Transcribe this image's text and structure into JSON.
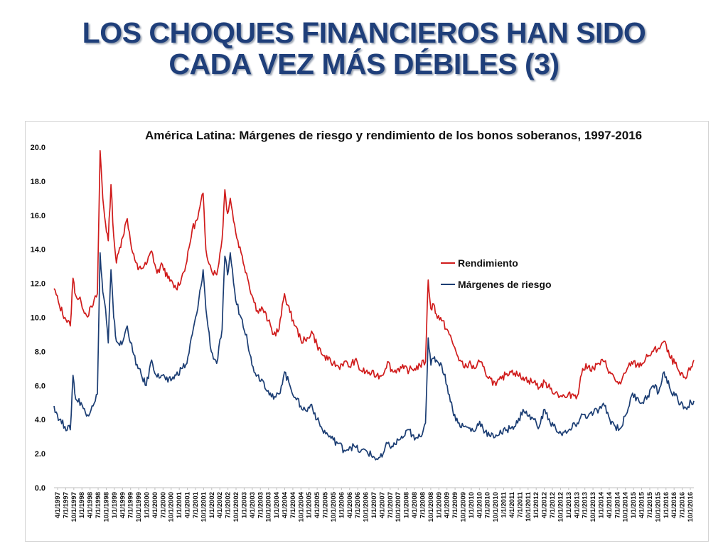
{
  "slide": {
    "title_line1": "LOS CHOQUES FINANCIEROS HAN SIDO",
    "title_line2": "CADA VEZ MÁS DÉBILES (3)"
  },
  "chart_data": {
    "type": "line",
    "title": "América Latina: Márgenes de riesgo y rendimiento de los bonos soberanos, 1997-2016",
    "xlabel": "",
    "ylabel": "",
    "ylim": [
      0,
      20
    ],
    "y_ticks": [
      "0.0",
      "2.0",
      "4.0",
      "6.0",
      "8.0",
      "10.0",
      "12.0",
      "14.0",
      "16.0",
      "18.0",
      "20.0"
    ],
    "x_ticks": [
      "4/1/1997",
      "7/1/1997",
      "10/1/1997",
      "1/1/1998",
      "4/1/1998",
      "7/1/1998",
      "10/1/1998",
      "1/1/1999",
      "4/1/1999",
      "7/1/1999",
      "10/1/1999",
      "1/1/2000",
      "4/1/2000",
      "7/1/2000",
      "10/1/2000",
      "1/1/2001",
      "4/1/2001",
      "7/1/2001",
      "10/1/2001",
      "1/1/2002",
      "4/1/2002",
      "7/1/2002",
      "10/1/2002",
      "1/1/2003",
      "4/1/2003",
      "7/1/2003",
      "10/1/2003",
      "1/1/2004",
      "4/1/2004",
      "7/1/2004",
      "10/1/2004",
      "1/1/2005",
      "4/1/2005",
      "7/1/2005",
      "10/1/2005",
      "1/1/2006",
      "4/1/2006",
      "7/1/2006",
      "10/1/2006",
      "1/1/2007",
      "4/1/2007",
      "7/1/2007",
      "10/1/2007",
      "1/1/2008",
      "4/1/2008",
      "7/1/2008",
      "10/1/2008",
      "1/1/2009",
      "4/1/2009",
      "7/1/2009",
      "10/1/2009",
      "1/1/2010",
      "4/1/2010",
      "7/1/2010",
      "10/1/2010",
      "1/1/2011",
      "4/1/2011",
      "7/1/2011",
      "10/1/2011",
      "1/1/2012",
      "4/1/2012",
      "7/1/2012",
      "10/1/2012",
      "1/1/2013",
      "4/1/2013",
      "7/1/2013",
      "10/1/2013",
      "1/1/2014",
      "4/1/2014",
      "7/1/2014",
      "10/1/2014",
      "1/1/2015",
      "4/1/2015",
      "7/1/2015",
      "10/1/2015",
      "1/1/2016",
      "4/1/2016",
      "7/1/2016",
      "10/1/2016"
    ],
    "grid": false,
    "legend_position": "right-middle",
    "series": [
      {
        "name": "Rendimiento",
        "color": "#d01c1c",
        "points": [
          [
            "1997-04",
            11.7
          ],
          [
            "1997-06",
            10.7
          ],
          [
            "1997-08",
            10.0
          ],
          [
            "1997-10",
            9.5
          ],
          [
            "1997-11",
            12.3
          ],
          [
            "1997-12",
            11.3
          ],
          [
            "1998-02",
            10.9
          ],
          [
            "1998-04",
            10.1
          ],
          [
            "1998-06",
            10.6
          ],
          [
            "1998-08",
            11.4
          ],
          [
            "1998-09",
            19.8
          ],
          [
            "1998-10",
            17.0
          ],
          [
            "1998-11",
            15.5
          ],
          [
            "1998-12",
            14.5
          ],
          [
            "1999-01",
            17.8
          ],
          [
            "1999-02",
            14.8
          ],
          [
            "1999-03",
            13.2
          ],
          [
            "1999-05",
            14.6
          ],
          [
            "1999-07",
            15.8
          ],
          [
            "1999-09",
            13.8
          ],
          [
            "1999-11",
            12.8
          ],
          [
            "2000-02",
            13.1
          ],
          [
            "2000-04",
            13.9
          ],
          [
            "2000-06",
            12.6
          ],
          [
            "2000-08",
            13.1
          ],
          [
            "2000-10",
            12.3
          ],
          [
            "2001-01",
            11.7
          ],
          [
            "2001-03",
            12.3
          ],
          [
            "2001-05",
            13.3
          ],
          [
            "2001-07",
            15.2
          ],
          [
            "2001-09",
            15.8
          ],
          [
            "2001-11",
            17.3
          ],
          [
            "2001-12",
            14.0
          ],
          [
            "2002-02",
            12.8
          ],
          [
            "2002-04",
            12.5
          ],
          [
            "2002-06",
            14.6
          ],
          [
            "2002-07",
            17.5
          ],
          [
            "2002-08",
            16.1
          ],
          [
            "2002-09",
            17.0
          ],
          [
            "2002-11",
            15.0
          ],
          [
            "2003-01",
            13.8
          ],
          [
            "2003-03",
            12.6
          ],
          [
            "2003-05",
            11.3
          ],
          [
            "2003-07",
            10.4
          ],
          [
            "2003-09",
            10.5
          ],
          [
            "2003-11",
            9.8
          ],
          [
            "2004-01",
            9.0
          ],
          [
            "2004-03",
            9.3
          ],
          [
            "2004-05",
            11.4
          ],
          [
            "2004-07",
            10.3
          ],
          [
            "2004-09",
            9.5
          ],
          [
            "2004-11",
            8.7
          ],
          [
            "2005-01",
            8.6
          ],
          [
            "2005-03",
            9.2
          ],
          [
            "2005-05",
            8.4
          ],
          [
            "2005-07",
            7.8
          ],
          [
            "2005-09",
            7.5
          ],
          [
            "2005-11",
            7.3
          ],
          [
            "2006-01",
            7.1
          ],
          [
            "2006-03",
            7.4
          ],
          [
            "2006-05",
            7.1
          ],
          [
            "2006-07",
            7.5
          ],
          [
            "2006-09",
            6.9
          ],
          [
            "2006-11",
            6.8
          ],
          [
            "2007-01",
            6.7
          ],
          [
            "2007-03",
            6.6
          ],
          [
            "2007-05",
            6.6
          ],
          [
            "2007-07",
            7.4
          ],
          [
            "2007-09",
            6.8
          ],
          [
            "2007-11",
            7.0
          ],
          [
            "2008-01",
            7.0
          ],
          [
            "2008-03",
            6.9
          ],
          [
            "2008-05",
            7.0
          ],
          [
            "2008-07",
            7.2
          ],
          [
            "2008-09",
            7.4
          ],
          [
            "2008-10",
            12.2
          ],
          [
            "2008-11",
            10.5
          ],
          [
            "2008-12",
            10.8
          ],
          [
            "2009-01",
            10.2
          ],
          [
            "2009-03",
            9.8
          ],
          [
            "2009-05",
            9.3
          ],
          [
            "2009-07",
            8.5
          ],
          [
            "2009-09",
            7.7
          ],
          [
            "2009-11",
            7.1
          ],
          [
            "2010-01",
            7.3
          ],
          [
            "2010-03",
            7.0
          ],
          [
            "2010-05",
            7.4
          ],
          [
            "2010-07",
            6.8
          ],
          [
            "2010-09",
            6.4
          ],
          [
            "2010-11",
            6.0
          ],
          [
            "2011-01",
            6.4
          ],
          [
            "2011-03",
            6.7
          ],
          [
            "2011-05",
            6.9
          ],
          [
            "2011-07",
            6.6
          ],
          [
            "2011-09",
            6.5
          ],
          [
            "2011-11",
            6.3
          ],
          [
            "2012-01",
            6.2
          ],
          [
            "2012-03",
            5.9
          ],
          [
            "2012-05",
            6.2
          ],
          [
            "2012-07",
            5.8
          ],
          [
            "2012-09",
            5.6
          ],
          [
            "2012-11",
            5.4
          ],
          [
            "2013-01",
            5.3
          ],
          [
            "2013-03",
            5.5
          ],
          [
            "2013-05",
            5.4
          ],
          [
            "2013-07",
            7.0
          ],
          [
            "2013-09",
            7.1
          ],
          [
            "2013-11",
            7.0
          ],
          [
            "2014-01",
            7.3
          ],
          [
            "2014-03",
            7.4
          ],
          [
            "2014-05",
            6.8
          ],
          [
            "2014-07",
            6.3
          ],
          [
            "2014-09",
            6.1
          ],
          [
            "2014-11",
            6.8
          ],
          [
            "2015-01",
            7.4
          ],
          [
            "2015-03",
            7.2
          ],
          [
            "2015-05",
            7.3
          ],
          [
            "2015-07",
            7.7
          ],
          [
            "2015-09",
            8.0
          ],
          [
            "2015-11",
            8.2
          ],
          [
            "2016-01",
            8.6
          ],
          [
            "2016-03",
            7.7
          ],
          [
            "2016-05",
            7.3
          ],
          [
            "2016-07",
            6.6
          ],
          [
            "2016-09",
            6.4
          ],
          [
            "2016-11",
            7.1
          ],
          [
            "2016-12",
            7.5
          ]
        ]
      },
      {
        "name": "Márgenes de riesgo",
        "color": "#1b3d73",
        "points": [
          [
            "1997-04",
            4.8
          ],
          [
            "1997-06",
            4.0
          ],
          [
            "1997-08",
            3.6
          ],
          [
            "1997-10",
            3.4
          ],
          [
            "1997-11",
            6.6
          ],
          [
            "1997-12",
            5.2
          ],
          [
            "1998-02",
            5.0
          ],
          [
            "1998-04",
            4.2
          ],
          [
            "1998-06",
            4.8
          ],
          [
            "1998-08",
            5.5
          ],
          [
            "1998-09",
            13.8
          ],
          [
            "1998-10",
            11.5
          ],
          [
            "1998-11",
            10.5
          ],
          [
            "1998-12",
            8.5
          ],
          [
            "1999-01",
            12.8
          ],
          [
            "1999-02",
            10.0
          ],
          [
            "1999-03",
            8.6
          ],
          [
            "1999-05",
            8.4
          ],
          [
            "1999-07",
            9.5
          ],
          [
            "1999-09",
            8.0
          ],
          [
            "1999-11",
            7.0
          ],
          [
            "2000-02",
            6.0
          ],
          [
            "2000-04",
            7.5
          ],
          [
            "2000-06",
            6.5
          ],
          [
            "2000-08",
            6.6
          ],
          [
            "2000-10",
            6.2
          ],
          [
            "2001-01",
            6.6
          ],
          [
            "2001-03",
            7.0
          ],
          [
            "2001-05",
            7.3
          ],
          [
            "2001-07",
            9.0
          ],
          [
            "2001-09",
            10.5
          ],
          [
            "2001-11",
            12.8
          ],
          [
            "2001-12",
            10.5
          ],
          [
            "2002-02",
            8.0
          ],
          [
            "2002-04",
            7.3
          ],
          [
            "2002-06",
            9.3
          ],
          [
            "2002-07",
            13.6
          ],
          [
            "2002-08",
            12.5
          ],
          [
            "2002-09",
            13.8
          ],
          [
            "2002-11",
            11.0
          ],
          [
            "2003-01",
            10.0
          ],
          [
            "2003-03",
            9.0
          ],
          [
            "2003-05",
            7.2
          ],
          [
            "2003-07",
            6.6
          ],
          [
            "2003-09",
            6.3
          ],
          [
            "2003-11",
            5.7
          ],
          [
            "2004-01",
            5.2
          ],
          [
            "2004-03",
            5.5
          ],
          [
            "2004-05",
            6.8
          ],
          [
            "2004-07",
            6.0
          ],
          [
            "2004-09",
            5.3
          ],
          [
            "2004-11",
            4.8
          ],
          [
            "2005-01",
            4.5
          ],
          [
            "2005-03",
            4.9
          ],
          [
            "2005-05",
            4.0
          ],
          [
            "2005-07",
            3.4
          ],
          [
            "2005-09",
            3.1
          ],
          [
            "2005-11",
            2.8
          ],
          [
            "2006-01",
            2.6
          ],
          [
            "2006-03",
            2.2
          ],
          [
            "2006-05",
            2.4
          ],
          [
            "2006-07",
            2.4
          ],
          [
            "2006-09",
            2.1
          ],
          [
            "2006-11",
            2.2
          ],
          [
            "2007-01",
            1.9
          ],
          [
            "2007-03",
            1.7
          ],
          [
            "2007-05",
            1.8
          ],
          [
            "2007-07",
            2.6
          ],
          [
            "2007-09",
            2.4
          ],
          [
            "2007-11",
            2.8
          ],
          [
            "2008-01",
            3.0
          ],
          [
            "2008-03",
            3.4
          ],
          [
            "2008-05",
            2.8
          ],
          [
            "2008-07",
            3.0
          ],
          [
            "2008-09",
            3.8
          ],
          [
            "2008-10",
            8.8
          ],
          [
            "2008-11",
            7.2
          ],
          [
            "2008-12",
            7.6
          ],
          [
            "2009-01",
            7.5
          ],
          [
            "2009-03",
            7.2
          ],
          [
            "2009-05",
            6.0
          ],
          [
            "2009-07",
            4.6
          ],
          [
            "2009-09",
            3.8
          ],
          [
            "2009-11",
            3.6
          ],
          [
            "2010-01",
            3.5
          ],
          [
            "2010-03",
            3.3
          ],
          [
            "2010-05",
            3.9
          ],
          [
            "2010-07",
            3.3
          ],
          [
            "2010-09",
            3.0
          ],
          [
            "2010-11",
            3.1
          ],
          [
            "2011-01",
            3.2
          ],
          [
            "2011-03",
            3.4
          ],
          [
            "2011-05",
            3.6
          ],
          [
            "2011-07",
            3.8
          ],
          [
            "2011-09",
            4.6
          ],
          [
            "2011-11",
            4.2
          ],
          [
            "2012-01",
            4.0
          ],
          [
            "2012-03",
            3.6
          ],
          [
            "2012-05",
            4.6
          ],
          [
            "2012-07",
            3.8
          ],
          [
            "2012-09",
            3.5
          ],
          [
            "2012-11",
            3.2
          ],
          [
            "2013-01",
            3.2
          ],
          [
            "2013-03",
            3.5
          ],
          [
            "2013-05",
            3.8
          ],
          [
            "2013-07",
            4.3
          ],
          [
            "2013-09",
            4.2
          ],
          [
            "2013-11",
            4.4
          ],
          [
            "2014-01",
            4.6
          ],
          [
            "2014-03",
            4.8
          ],
          [
            "2014-05",
            4.0
          ],
          [
            "2014-07",
            3.6
          ],
          [
            "2014-09",
            3.5
          ],
          [
            "2014-11",
            4.3
          ],
          [
            "2015-01",
            5.4
          ],
          [
            "2015-03",
            5.3
          ],
          [
            "2015-05",
            5.0
          ],
          [
            "2015-07",
            5.4
          ],
          [
            "2015-09",
            6.0
          ],
          [
            "2015-11",
            5.6
          ],
          [
            "2016-01",
            6.8
          ],
          [
            "2016-03",
            5.9
          ],
          [
            "2016-05",
            5.4
          ],
          [
            "2016-07",
            4.9
          ],
          [
            "2016-09",
            4.7
          ],
          [
            "2016-11",
            5.0
          ],
          [
            "2016-12",
            5.1
          ]
        ]
      }
    ]
  }
}
